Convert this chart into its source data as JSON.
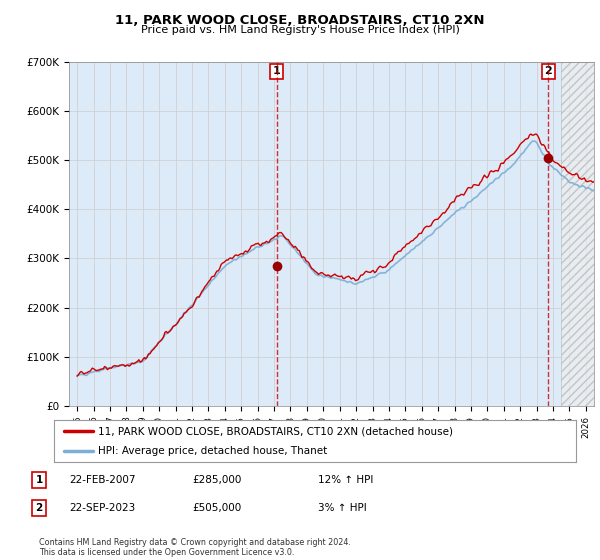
{
  "title": "11, PARK WOOD CLOSE, BROADSTAIRS, CT10 2XN",
  "subtitle": "Price paid vs. HM Land Registry's House Price Index (HPI)",
  "ylabel_ticks": [
    "£0",
    "£100K",
    "£200K",
    "£300K",
    "£400K",
    "£500K",
    "£600K",
    "£700K"
  ],
  "ylim": [
    0,
    700000
  ],
  "xlim_start": 1994.5,
  "xlim_end": 2026.5,
  "hatch_start": 2024.5,
  "sale1_x": 2007.15,
  "sale1_y": 285000,
  "sale1_label": "1",
  "sale2_x": 2023.72,
  "sale2_y": 505000,
  "sale2_label": "2",
  "line_color_price": "#cc0000",
  "line_color_hpi": "#7bafd4",
  "marker_color": "#990000",
  "vline_color": "#cc0000",
  "legend_label1": "11, PARK WOOD CLOSE, BROADSTAIRS, CT10 2XN (detached house)",
  "legend_label2": "HPI: Average price, detached house, Thanet",
  "table_row1": [
    "1",
    "22-FEB-2007",
    "£285,000",
    "12% ↑ HPI"
  ],
  "table_row2": [
    "2",
    "22-SEP-2023",
    "£505,000",
    "3% ↑ HPI"
  ],
  "footnote": "Contains HM Land Registry data © Crown copyright and database right 2024.\nThis data is licensed under the Open Government Licence v3.0.",
  "grid_color": "#cccccc",
  "bg_color": "#ddeaf7",
  "hatch_bg": "#e8e8e8",
  "plot_bg": "#ffffff"
}
